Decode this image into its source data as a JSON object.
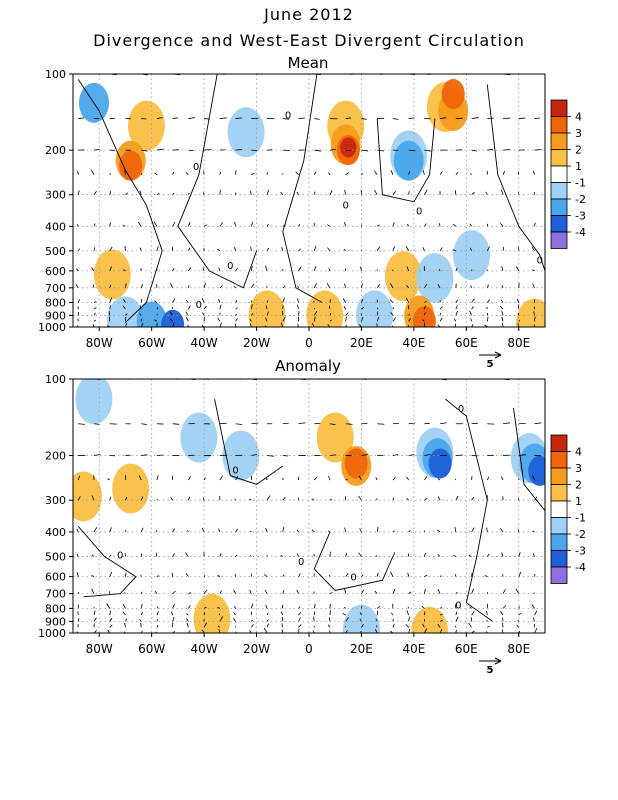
{
  "title": "June 2012",
  "subtitle": "Divergence and West-East Divergent Circulation",
  "chart_data": [
    {
      "type": "heatmap",
      "title": "Mean",
      "x_ticks": [
        "80W",
        "60W",
        "40W",
        "20W",
        "0",
        "20E",
        "40E",
        "60E",
        "80E"
      ],
      "x_values": [
        -80,
        -60,
        -40,
        -20,
        0,
        20,
        40,
        60,
        80
      ],
      "xlim": [
        -90,
        90
      ],
      "y_ticks": [
        "100",
        "200",
        "300",
        "400",
        "500",
        "600",
        "700",
        "800",
        "900",
        "1000"
      ],
      "y_values": [
        100,
        200,
        300,
        400,
        500,
        600,
        700,
        800,
        900,
        1000
      ],
      "ylim": [
        100,
        1000
      ],
      "y_scale": "log-pressure",
      "vector_reference": "5",
      "contour_label": "0",
      "contour_labels": [
        {
          "lon": -8,
          "p": 150
        },
        {
          "lon": -43,
          "p": 240
        },
        {
          "lon": -30,
          "p": 590
        },
        {
          "lon": 14,
          "p": 340
        },
        {
          "lon": 42,
          "p": 360
        },
        {
          "lon": 88,
          "p": 560
        },
        {
          "lon": -42,
          "p": 840
        }
      ],
      "features": [
        {
          "lon": -82,
          "p": 130,
          "level": -2
        },
        {
          "lon": -62,
          "p": 160,
          "level": 1
        },
        {
          "lon": -68,
          "p": 220,
          "level": 2
        },
        {
          "lon": -68,
          "p": 230,
          "level": 3
        },
        {
          "lon": -24,
          "p": 170,
          "level": -1
        },
        {
          "lon": 14,
          "p": 160,
          "level": 1
        },
        {
          "lon": 14,
          "p": 190,
          "level": 2
        },
        {
          "lon": 15,
          "p": 200,
          "level": 3
        },
        {
          "lon": 15,
          "p": 195,
          "level": 4
        },
        {
          "lon": 38,
          "p": 210,
          "level": -1
        },
        {
          "lon": 38,
          "p": 220,
          "level": -2
        },
        {
          "lon": 52,
          "p": 135,
          "level": 1
        },
        {
          "lon": 55,
          "p": 140,
          "level": 2
        },
        {
          "lon": 55,
          "p": 120,
          "level": 3
        },
        {
          "lon": 62,
          "p": 520,
          "level": -1
        },
        {
          "lon": -75,
          "p": 620,
          "level": 1
        },
        {
          "lon": 36,
          "p": 630,
          "level": 1
        },
        {
          "lon": 48,
          "p": 640,
          "level": -1
        },
        {
          "lon": -70,
          "p": 950,
          "level": -1
        },
        {
          "lon": -60,
          "p": 950,
          "level": -2
        },
        {
          "lon": -52,
          "p": 980,
          "level": -3
        },
        {
          "lon": 25,
          "p": 900,
          "level": -1
        },
        {
          "lon": 42,
          "p": 900,
          "level": 2
        },
        {
          "lon": 44,
          "p": 950,
          "level": 3
        },
        {
          "lon": 6,
          "p": 900,
          "level": 1
        },
        {
          "lon": -16,
          "p": 900,
          "level": 1
        },
        {
          "lon": 86,
          "p": 970,
          "level": 1
        }
      ],
      "legend": {
        "labels": [
          "4",
          "3",
          "2",
          "1",
          "-1",
          "-2",
          "-3",
          "-4"
        ],
        "placement": "right"
      }
    },
    {
      "type": "heatmap",
      "title": "Anomaly",
      "x_ticks": [
        "80W",
        "60W",
        "40W",
        "20W",
        "0",
        "20E",
        "40E",
        "60E",
        "80E"
      ],
      "x_values": [
        -80,
        -60,
        -40,
        -20,
        0,
        20,
        40,
        60,
        80
      ],
      "xlim": [
        -90,
        90
      ],
      "y_ticks": [
        "100",
        "200",
        "300",
        "400",
        "500",
        "600",
        "700",
        "800",
        "900",
        "1000"
      ],
      "y_values": [
        100,
        200,
        300,
        400,
        500,
        600,
        700,
        800,
        900,
        1000
      ],
      "ylim": [
        100,
        1000
      ],
      "y_scale": "log-pressure",
      "vector_reference": "5",
      "contour_label": "0",
      "contour_labels": [
        {
          "lon": -28,
          "p": 235
        },
        {
          "lon": -72,
          "p": 510
        },
        {
          "lon": -3,
          "p": 540
        },
        {
          "lon": 17,
          "p": 620
        },
        {
          "lon": 58,
          "p": 135
        },
        {
          "lon": 57,
          "p": 800
        }
      ],
      "features": [
        {
          "lon": -82,
          "p": 120,
          "level": -1
        },
        {
          "lon": -42,
          "p": 170,
          "level": -1
        },
        {
          "lon": -26,
          "p": 200,
          "level": -1
        },
        {
          "lon": -86,
          "p": 290,
          "level": 1
        },
        {
          "lon": -68,
          "p": 270,
          "level": 1
        },
        {
          "lon": 10,
          "p": 170,
          "level": 1
        },
        {
          "lon": 18,
          "p": 220,
          "level": 2
        },
        {
          "lon": 18,
          "p": 215,
          "level": 3
        },
        {
          "lon": 48,
          "p": 195,
          "level": -1
        },
        {
          "lon": 49,
          "p": 205,
          "level": -2
        },
        {
          "lon": 50,
          "p": 215,
          "level": -3
        },
        {
          "lon": 84,
          "p": 205,
          "level": -1
        },
        {
          "lon": 86,
          "p": 215,
          "level": -2
        },
        {
          "lon": 88,
          "p": 230,
          "level": -3
        },
        {
          "lon": -37,
          "p": 880,
          "level": 1
        },
        {
          "lon": 20,
          "p": 970,
          "level": -1
        },
        {
          "lon": 46,
          "p": 990,
          "level": 1
        }
      ],
      "legend": {
        "labels": [
          "4",
          "3",
          "2",
          "1",
          "-1",
          "-2",
          "-3",
          "-4"
        ],
        "placement": "right"
      }
    }
  ],
  "legend_colors": [
    "#c8250e",
    "#f0640a",
    "#f79c1a",
    "#fbbf45",
    "#ffffff",
    "#9fd1f6",
    "#4aa7ec",
    "#1f5fd8",
    "#8f6fdc"
  ]
}
